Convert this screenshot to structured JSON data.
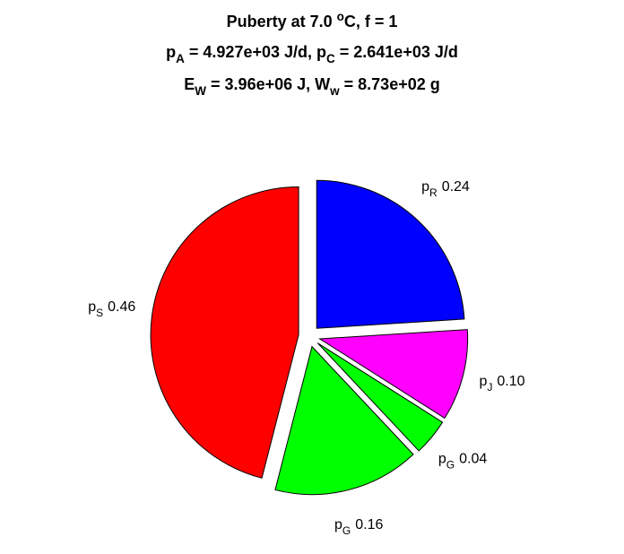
{
  "chart_data": {
    "type": "pie",
    "title": [
      [
        {
          "text": "Puberty at 7.0 "
        },
        {
          "sup": "o"
        },
        {
          "text": "C, f = 1"
        }
      ],
      [
        {
          "text": "p"
        },
        {
          "sub": "A"
        },
        {
          "text": " = 4.927e+03 J/d,  p"
        },
        {
          "sub": "C"
        },
        {
          "text": " = 2.641e+03 J/d"
        }
      ],
      [
        {
          "text": "E"
        },
        {
          "sub": "W"
        },
        {
          "text": " = 3.96e+06 J, W"
        },
        {
          "sub": "w"
        },
        {
          "text": " = 8.73e+02 g"
        }
      ]
    ],
    "categories": [
      {
        "text": "p",
        "sub": "R"
      },
      {
        "text": "p",
        "sub": "J"
      },
      {
        "text": "p",
        "sub": "G"
      },
      {
        "text": "p",
        "sub": "G"
      },
      {
        "text": "p",
        "sub": "S"
      }
    ],
    "values": [
      0.24,
      0.1,
      0.04,
      0.16,
      0.46
    ],
    "value_labels": [
      "0.24",
      "0.10",
      "0.04",
      "0.16",
      "0.46"
    ],
    "colors": [
      "#0000ff",
      "#ff00ff",
      "#00ff00",
      "#00ff00",
      "#ff0000"
    ],
    "exploded": true
  }
}
